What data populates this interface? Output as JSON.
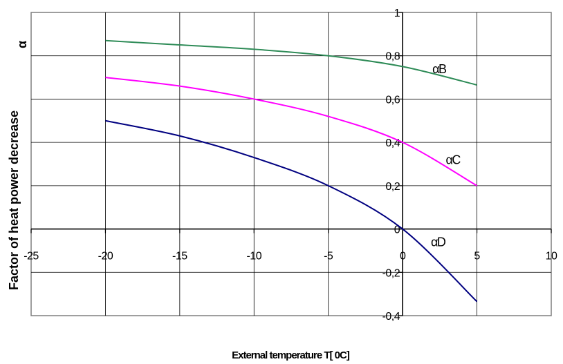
{
  "chart_data": {
    "type": "line",
    "xlabel": "External temperature T[ 0C]",
    "ylabel": "Factor of heat power decrease",
    "ylabel_symbol": "α",
    "xlim": [
      -25,
      10
    ],
    "ylim": [
      -0.4,
      1
    ],
    "x_ticks": [
      -25,
      -20,
      -15,
      -10,
      -5,
      0,
      5,
      10
    ],
    "x_tick_labels": [
      "-25",
      "-20",
      "-15",
      "-10",
      "-5",
      "0",
      "5",
      "10"
    ],
    "y_ticks": [
      -0.4,
      -0.2,
      0,
      0.2,
      0.4,
      0.6,
      0.8,
      1
    ],
    "y_tick_labels": [
      "-0,4",
      "-0,2",
      "0",
      "0,2",
      "0,4",
      "0,6",
      "0,8",
      "1"
    ],
    "grid": true,
    "series": [
      {
        "name": "αB",
        "color": "#2e8b57",
        "x": [
          -20,
          -15,
          -10,
          -5,
          0,
          5
        ],
        "y": [
          0.87,
          0.85,
          0.83,
          0.8,
          0.75,
          0.665
        ]
      },
      {
        "name": "αC",
        "color": "#ff00ff",
        "x": [
          -20,
          -15,
          -10,
          -5,
          0,
          5
        ],
        "y": [
          0.7,
          0.66,
          0.6,
          0.52,
          0.4,
          0.2
        ]
      },
      {
        "name": "αD",
        "color": "#000080",
        "x": [
          -20,
          -15,
          -10,
          -5,
          0,
          5
        ],
        "y": [
          0.5,
          0.43,
          0.33,
          0.2,
          0.0,
          -0.335
        ]
      }
    ]
  }
}
